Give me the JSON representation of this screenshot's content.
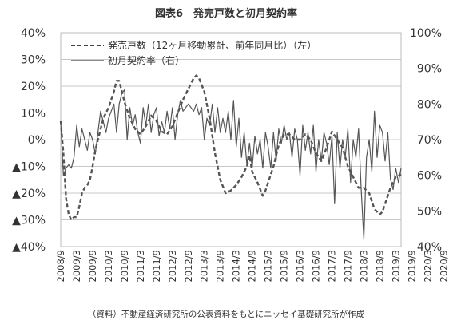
{
  "chart_data": {
    "type": "line",
    "title": "図表6　発売戸数と初月契約率",
    "source": "（資料）不動産経済研究所の公表資料をもとにニッセイ基礎研究所が作成",
    "y_left": {
      "ylim": [
        -40,
        40
      ],
      "ticks": [
        "40%",
        "30%",
        "20%",
        "10%",
        "0%",
        "▲10%",
        "▲20%",
        "▲30%",
        "▲40%"
      ]
    },
    "y_right": {
      "ylim": [
        40,
        100
      ],
      "ticks": [
        "100%",
        "90%",
        "80%",
        "70%",
        "60%",
        "50%",
        "40%"
      ]
    },
    "x_ticks": [
      "2008/9",
      "2009/3",
      "2009/9",
      "2010/3",
      "2010/9",
      "2011/3",
      "2011/9",
      "2012/3",
      "2012/9",
      "2013/3",
      "2013/9",
      "2014/3",
      "2014/9",
      "2015/3",
      "2015/9",
      "2016/3",
      "2016/9",
      "2017/3",
      "2017/9",
      "2018/3",
      "2018/9",
      "2019/3",
      "2019/9",
      "2020/3",
      "2020/9"
    ],
    "legend": [
      {
        "name": "発売戸数（12ヶ月移動累計、前年同月比）（左）",
        "style": "dashed",
        "axis": "left"
      },
      {
        "name": "初月契約率（右）",
        "style": "solid",
        "axis": "right"
      }
    ],
    "grid": true,
    "series": [
      {
        "name": "発売戸数（12ヶ月移動累計、前年同月比）（左）",
        "axis": "left",
        "points": [
          [
            0,
            7
          ],
          [
            1,
            -5
          ],
          [
            2,
            -22
          ],
          [
            3,
            -28
          ],
          [
            4,
            -30
          ],
          [
            5,
            -29
          ],
          [
            6,
            -29
          ],
          [
            7,
            -25
          ],
          [
            8,
            -20
          ],
          [
            9,
            -18
          ],
          [
            10,
            -17
          ],
          [
            11,
            -15
          ],
          [
            12,
            -10
          ],
          [
            13,
            -4
          ],
          [
            14,
            0
          ],
          [
            16,
            8
          ],
          [
            18,
            12
          ],
          [
            20,
            18
          ],
          [
            21,
            22
          ],
          [
            22,
            22
          ],
          [
            23,
            18
          ],
          [
            24,
            14
          ],
          [
            26,
            8
          ],
          [
            28,
            4
          ],
          [
            30,
            2
          ],
          [
            32,
            5
          ],
          [
            34,
            9
          ],
          [
            36,
            7
          ],
          [
            38,
            3
          ],
          [
            40,
            2
          ],
          [
            42,
            5
          ],
          [
            44,
            10
          ],
          [
            46,
            15
          ],
          [
            48,
            19
          ],
          [
            50,
            23
          ],
          [
            51,
            24
          ],
          [
            52,
            23
          ],
          [
            54,
            18
          ],
          [
            56,
            8
          ],
          [
            58,
            -5
          ],
          [
            60,
            -15
          ],
          [
            62,
            -20
          ],
          [
            64,
            -19
          ],
          [
            66,
            -17
          ],
          [
            68,
            -14
          ],
          [
            70,
            -10
          ],
          [
            71,
            -6
          ],
          [
            72,
            -12
          ],
          [
            74,
            -16
          ],
          [
            76,
            -21
          ],
          [
            77,
            -19
          ],
          [
            78,
            -16
          ],
          [
            80,
            -10
          ],
          [
            82,
            -2
          ],
          [
            84,
            2
          ],
          [
            86,
            2
          ],
          [
            88,
            0
          ],
          [
            90,
            0
          ],
          [
            92,
            2
          ],
          [
            94,
            0
          ],
          [
            96,
            -5
          ],
          [
            98,
            -8
          ],
          [
            100,
            -3
          ],
          [
            102,
            3
          ],
          [
            104,
            0
          ],
          [
            106,
            -3
          ],
          [
            108,
            -10
          ],
          [
            110,
            -14
          ],
          [
            112,
            -18
          ],
          [
            114,
            -18
          ],
          [
            116,
            -20
          ],
          [
            118,
            -26
          ],
          [
            120,
            -28
          ],
          [
            121,
            -27
          ],
          [
            122,
            -24
          ],
          [
            124,
            -18
          ],
          [
            126,
            -14
          ],
          [
            128,
            -13
          ]
        ]
      },
      {
        "name": "初月契約率（右）",
        "axis": "right",
        "points": [
          [
            0,
            75
          ],
          [
            1,
            60
          ],
          [
            2,
            62
          ],
          [
            3,
            63
          ],
          [
            4,
            62
          ],
          [
            5,
            65
          ],
          [
            6,
            74
          ],
          [
            7,
            68
          ],
          [
            8,
            73
          ],
          [
            9,
            70
          ],
          [
            10,
            67
          ],
          [
            11,
            72
          ],
          [
            12,
            70
          ],
          [
            13,
            66
          ],
          [
            14,
            72
          ],
          [
            15,
            78
          ],
          [
            16,
            75
          ],
          [
            17,
            72
          ],
          [
            18,
            76
          ],
          [
            19,
            78
          ],
          [
            20,
            80
          ],
          [
            21,
            72
          ],
          [
            22,
            80
          ],
          [
            23,
            83
          ],
          [
            24,
            84
          ],
          [
            25,
            70
          ],
          [
            26,
            79
          ],
          [
            27,
            74
          ],
          [
            28,
            77
          ],
          [
            29,
            72
          ],
          [
            30,
            69
          ],
          [
            31,
            79
          ],
          [
            32,
            74
          ],
          [
            33,
            80
          ],
          [
            34,
            72
          ],
          [
            35,
            77
          ],
          [
            36,
            79
          ],
          [
            37,
            71
          ],
          [
            38,
            75
          ],
          [
            39,
            72
          ],
          [
            40,
            78
          ],
          [
            41,
            73
          ],
          [
            42,
            79
          ],
          [
            43,
            70
          ],
          [
            44,
            77
          ],
          [
            45,
            81
          ],
          [
            46,
            78
          ],
          [
            47,
            79
          ],
          [
            48,
            80
          ],
          [
            49,
            79
          ],
          [
            50,
            78
          ],
          [
            51,
            80
          ],
          [
            52,
            77
          ],
          [
            53,
            79
          ],
          [
            54,
            70
          ],
          [
            55,
            76
          ],
          [
            56,
            74
          ],
          [
            57,
            80
          ],
          [
            58,
            72
          ],
          [
            59,
            79
          ],
          [
            60,
            72
          ],
          [
            61,
            76
          ],
          [
            62,
            72
          ],
          [
            63,
            78
          ],
          [
            64,
            70
          ],
          [
            65,
            81
          ],
          [
            66,
            68
          ],
          [
            67,
            76
          ],
          [
            68,
            65
          ],
          [
            69,
            72
          ],
          [
            70,
            63
          ],
          [
            71,
            69
          ],
          [
            72,
            62
          ],
          [
            73,
            71
          ],
          [
            74,
            66
          ],
          [
            75,
            70
          ],
          [
            76,
            62
          ],
          [
            77,
            72
          ],
          [
            78,
            68
          ],
          [
            79,
            62
          ],
          [
            80,
            72
          ],
          [
            81,
            64
          ],
          [
            82,
            73
          ],
          [
            83,
            69
          ],
          [
            84,
            74
          ],
          [
            85,
            70
          ],
          [
            86,
            72
          ],
          [
            87,
            65
          ],
          [
            88,
            73
          ],
          [
            89,
            70
          ],
          [
            90,
            60
          ],
          [
            91,
            74
          ],
          [
            92,
            67
          ],
          [
            93,
            72
          ],
          [
            94,
            66
          ],
          [
            95,
            74
          ],
          [
            96,
            61
          ],
          [
            97,
            70
          ],
          [
            98,
            64
          ],
          [
            99,
            72
          ],
          [
            100,
            69
          ],
          [
            101,
            63
          ],
          [
            102,
            71
          ],
          [
            103,
            52
          ],
          [
            104,
            72
          ],
          [
            105,
            62
          ],
          [
            106,
            70
          ],
          [
            107,
            65
          ],
          [
            108,
            73
          ],
          [
            109,
            58
          ],
          [
            110,
            70
          ],
          [
            111,
            65
          ],
          [
            112,
            73
          ],
          [
            113,
            56
          ],
          [
            114,
            42
          ],
          [
            115,
            65
          ],
          [
            116,
            70
          ],
          [
            117,
            61
          ],
          [
            118,
            78
          ],
          [
            119,
            65
          ],
          [
            120,
            74
          ],
          [
            121,
            72
          ],
          [
            122,
            64
          ],
          [
            123,
            72
          ],
          [
            124,
            59
          ],
          [
            125,
            56
          ],
          [
            126,
            62
          ],
          [
            127,
            58
          ],
          [
            128,
            62
          ]
        ]
      }
    ]
  }
}
